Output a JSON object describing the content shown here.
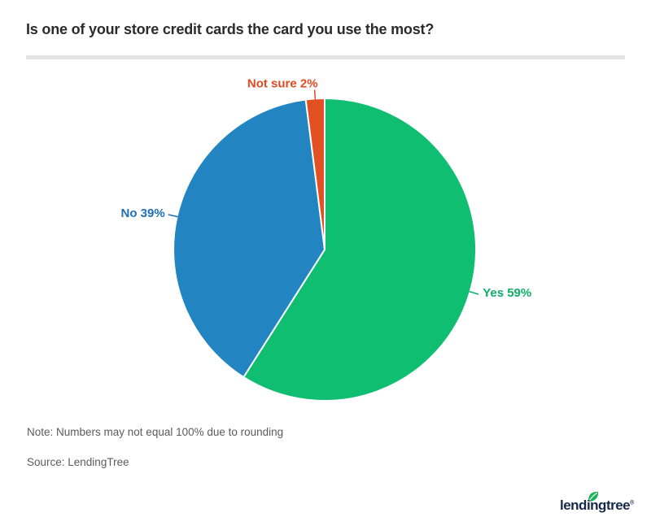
{
  "header": {
    "title": "Is one of your store credit cards the card you use the most?"
  },
  "chart_data": {
    "type": "pie",
    "title": "Is one of your store credit cards the card you use the most?",
    "unit": "%",
    "direction": "clockwise",
    "start_angle_deg": 0,
    "legend": "none",
    "labels_style": "outside with leader lines",
    "series": [
      {
        "name": "Yes",
        "value": 59,
        "color": "#10BE72",
        "label_color": "#10AD68"
      },
      {
        "name": "No",
        "value": 39,
        "color": "#2284C1",
        "label_color": "#1C70B3"
      },
      {
        "name": "Not sure",
        "value": 2,
        "color": "#E25124",
        "label_color": "#E04A1F"
      }
    ]
  },
  "footer": {
    "note": "Note: Numbers may not equal 100% due to rounding",
    "source": "Source: LendingTree"
  },
  "logo": {
    "text": "lendingtree",
    "registered": "®",
    "navy": "#17294B",
    "green": "#1CB25B"
  }
}
